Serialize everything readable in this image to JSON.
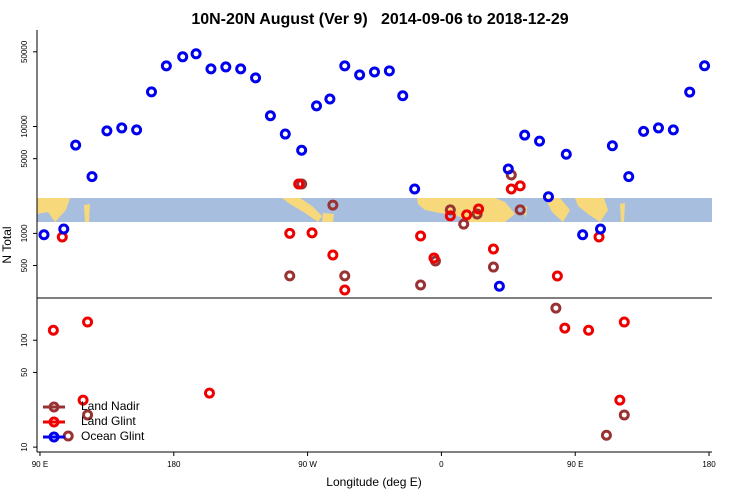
{
  "chart_data": {
    "type": "scatter",
    "title": "10N-20N August (Ver 9)   2014-09-06 to 2018-12-29",
    "xlabel": "Longitude (deg E)",
    "ylabel": "N Total",
    "xlim": [
      88,
      542
    ],
    "ylim": [
      9,
      80000
    ],
    "log_y": true,
    "legend": "bottomleft",
    "xticks": [
      {
        "value": 90,
        "label": "90 E"
      },
      {
        "value": 180,
        "label": "180"
      },
      {
        "value": 270,
        "label": "90 W"
      },
      {
        "value": 360,
        "label": "0"
      },
      {
        "value": 450,
        "label": "90 E"
      },
      {
        "value": 540,
        "label": "180"
      }
    ],
    "yticks": [
      10,
      50,
      100,
      500,
      1000,
      5000,
      10000,
      50000
    ],
    "series": [
      {
        "name": "Land Nadir",
        "color": "#993333",
        "x": [
          109,
          122,
          258,
          266,
          287,
          295,
          346,
          356,
          366,
          375,
          384,
          395,
          407,
          413,
          437,
          471,
          483
        ],
        "values": [
          12.7,
          20,
          400,
          2900,
          1840,
          400,
          329,
          552,
          1660,
          1220,
          1520,
          484,
          3520,
          1660,
          200,
          12.9,
          20
        ]
      },
      {
        "name": "Land Glint",
        "color": "#ee0000",
        "x": [
          99,
          105,
          119,
          122,
          204,
          258,
          264,
          273,
          287,
          295,
          346,
          355,
          366,
          377,
          385,
          395,
          407,
          413,
          438,
          443,
          459,
          466,
          480,
          483
        ],
        "values": [
          124,
          925,
          27.5,
          148,
          32,
          1000,
          2900,
          1010,
          628,
          295,
          946,
          589,
          1460,
          1490,
          1690,
          714,
          2600,
          2780,
          399,
          130,
          124,
          925,
          27.5,
          148
        ]
      },
      {
        "name": "Ocean Glint",
        "color": "#0000ee",
        "x": [
          92.7,
          106,
          114,
          125,
          135,
          145,
          155,
          165,
          175,
          186,
          195,
          205,
          215,
          225,
          235,
          245,
          255,
          266,
          276,
          285,
          295,
          305,
          315,
          325,
          334,
          342,
          399,
          405,
          416,
          426,
          432,
          444,
          455,
          467,
          475,
          486,
          496,
          506,
          516,
          527,
          537
        ],
        "values": [
          970,
          1100,
          6700,
          3400,
          9100,
          9700,
          9300,
          21100,
          36900,
          44900,
          47900,
          34600,
          36100,
          34600,
          28500,
          12600,
          8500,
          6000,
          15600,
          18100,
          36900,
          30400,
          32400,
          33200,
          19400,
          2600,
          320,
          4000,
          8300,
          7300,
          2200,
          5500,
          970,
          1100,
          6600,
          3400,
          9000,
          9700,
          9300,
          21000,
          37000
        ]
      }
    ]
  }
}
